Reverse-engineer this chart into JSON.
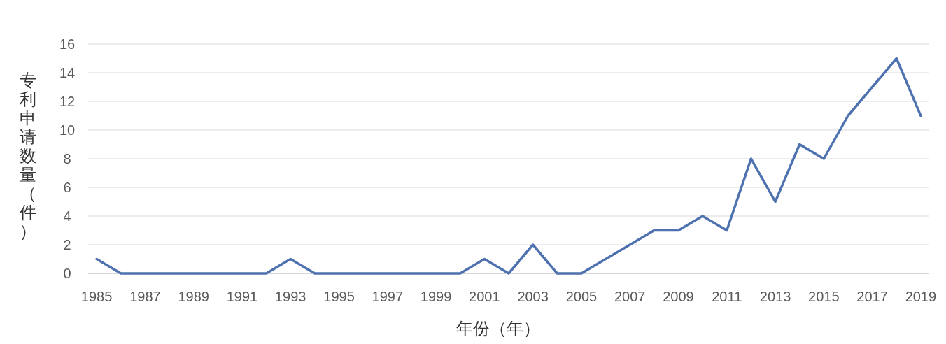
{
  "chart_data": {
    "type": "line",
    "xlabel": "年份（年）",
    "ylabel": "专利申请数量（件）",
    "categories": [
      "1985",
      null,
      "1987",
      null,
      "1989",
      null,
      "1991",
      null,
      "1993",
      null,
      "1995",
      null,
      "1997",
      null,
      "1999",
      null,
      "2001",
      null,
      "2003",
      null,
      "2005",
      null,
      "2007",
      null,
      "2009",
      null,
      "2011",
      null,
      "2013",
      null,
      "2015",
      null,
      "2017",
      null,
      "2019"
    ],
    "series": [
      {
        "color": "#4e72b0",
        "values": [
          1,
          0,
          0,
          0,
          0,
          0,
          0,
          0,
          1,
          0,
          0,
          0,
          0,
          0,
          0,
          0,
          1,
          0,
          2,
          0,
          0,
          1,
          2,
          3,
          3,
          4,
          3,
          8,
          5,
          9,
          8,
          11,
          13,
          15,
          11
        ]
      }
    ],
    "ylim": [
      0,
      16
    ],
    "yticks": [
      0,
      2,
      4,
      6,
      8,
      10,
      12,
      14,
      16
    ],
    "grid": "y",
    "marker": "none",
    "line_style": "solid"
  }
}
